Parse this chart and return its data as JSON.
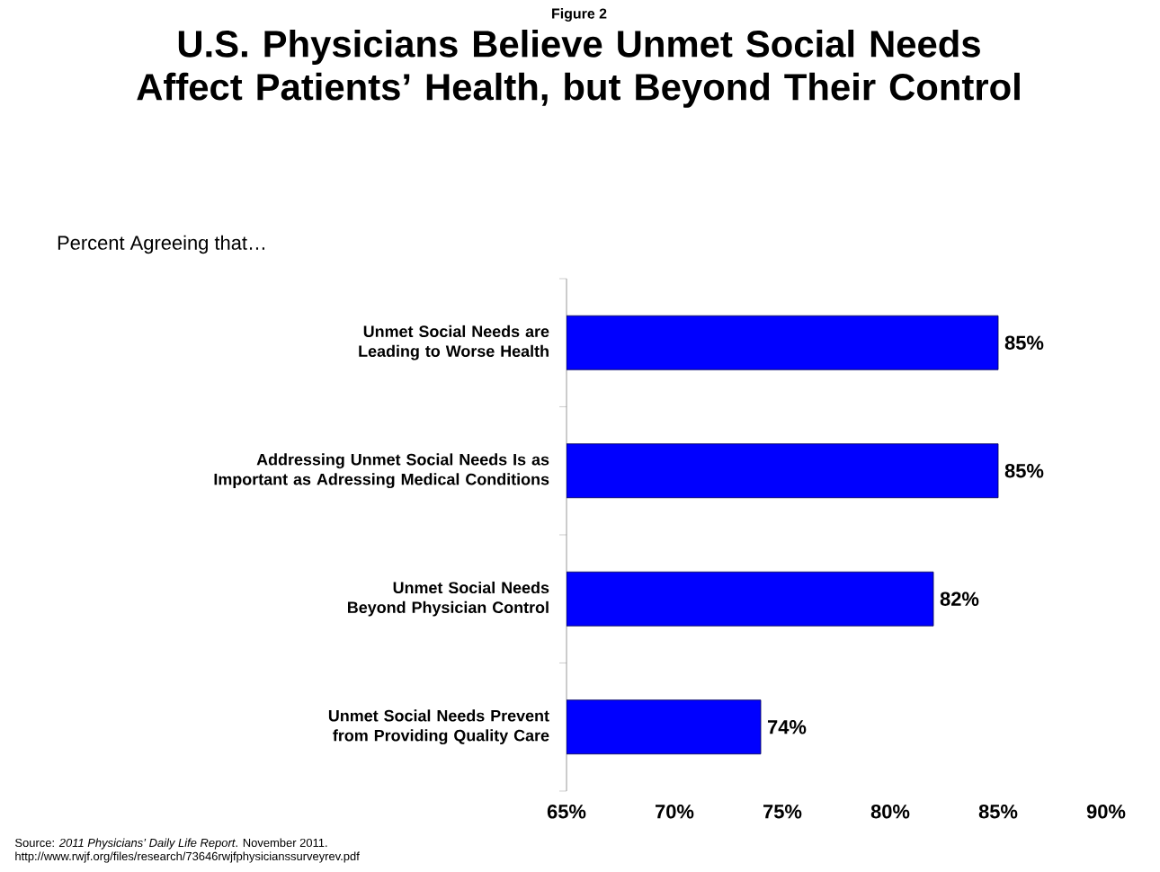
{
  "chart_data": {
    "type": "bar",
    "orientation": "horizontal",
    "title": "U.S. Physicians Believe Unmet Social Needs Affect Patients’ Health, but Beyond Their Control",
    "subtitle": "Percent Agreeing that…",
    "annotations": [
      "Figure 2",
      "Source:  *2011 Physicians’ Daily Life Report*.  November 2011.",
      "http://www.rwjf.org/files/research/73646rwjfphysicianssurveyrev.pdf"
    ],
    "categories": [
      "Unmet Social Needs are Leading to Worse Health",
      "Addressing Unmet Social Needs Is as Important as Adressing Medical Conditions",
      "Unmet Social Needs Beyond Physician Control",
      "Unmet Social Needs Prevent from Providing Quality Care"
    ],
    "values": [
      85,
      85,
      82,
      74
    ],
    "value_labels": [
      "85%",
      "85%",
      "82%",
      "74%"
    ],
    "color": "#0000ff",
    "xlim": [
      65,
      90
    ],
    "xticks": [
      {
        "value": 65,
        "label": "65%"
      },
      {
        "value": 70,
        "label": "70%"
      },
      {
        "value": 75,
        "label": "75%"
      },
      {
        "value": 80,
        "label": "80%"
      },
      {
        "value": 85,
        "label": "85%"
      },
      {
        "value": 90,
        "label": "90%"
      }
    ]
  }
}
